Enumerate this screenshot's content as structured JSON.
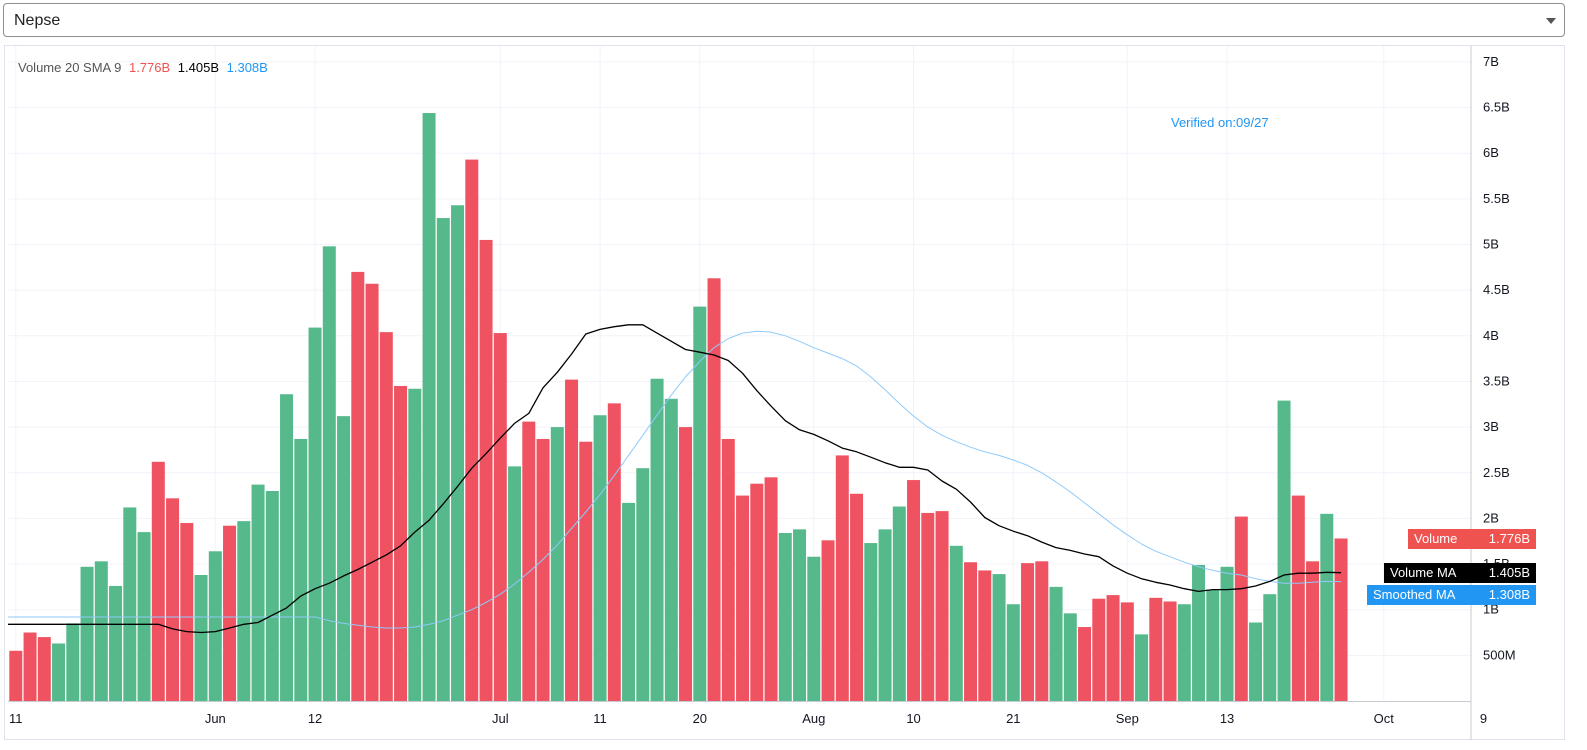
{
  "selector": {
    "value": "Nepse"
  },
  "legend": {
    "label": "Volume 20 SMA 9",
    "volume": "1.776B",
    "ma": "1.405B",
    "smoothed": "1.308B"
  },
  "annotation": "Verified on:09/27",
  "badges": {
    "volume": {
      "label": "Volume",
      "value": "1.776B"
    },
    "ma": {
      "label": "Volume MA",
      "value": "1.405B"
    },
    "smoothed": {
      "label": "Smoothed MA",
      "value": "1.308B"
    }
  },
  "colors": {
    "up": "#55b98b",
    "down": "#ef5362",
    "ma": "#000000",
    "smoothed": "#90caf9",
    "accent": "#2196f3"
  },
  "chart_data": {
    "type": "bar",
    "unit": "shares volume",
    "y_ticks": [
      "500M",
      "1B",
      "1.5B",
      "2B",
      "2.5B",
      "3B",
      "3.5B",
      "4B",
      "4.5B",
      "5B",
      "5.5B",
      "6B",
      "6.5B",
      "7B"
    ],
    "x_ticks": [
      {
        "label": "11",
        "i": 0
      },
      {
        "label": "Jun",
        "i": 14
      },
      {
        "label": "12",
        "i": 21
      },
      {
        "label": "Jul",
        "i": 34
      },
      {
        "label": "11",
        "i": 41
      },
      {
        "label": "20",
        "i": 48
      },
      {
        "label": "Aug",
        "i": 56
      },
      {
        "label": "10",
        "i": 63
      },
      {
        "label": "21",
        "i": 70
      },
      {
        "label": "Sep",
        "i": 78
      },
      {
        "label": "13",
        "i": 85
      },
      {
        "label": "Oct",
        "i": 96
      },
      {
        "label": "9",
        "i": 103
      }
    ],
    "ylim": [
      0,
      7.2
    ],
    "series": [
      {
        "name": "Volume",
        "type": "bar",
        "values": [
          0.55,
          0.75,
          0.7,
          0.63,
          0.85,
          1.47,
          1.53,
          1.26,
          2.12,
          1.85,
          2.62,
          2.22,
          1.95,
          1.38,
          1.64,
          1.92,
          1.97,
          2.37,
          2.3,
          3.36,
          2.87,
          4.09,
          4.98,
          3.12,
          4.7,
          4.57,
          4.04,
          3.45,
          3.42,
          6.44,
          5.29,
          5.43,
          5.93,
          5.05,
          4.03,
          2.57,
          3.06,
          2.87,
          3.0,
          3.52,
          2.84,
          3.13,
          3.26,
          2.17,
          2.55,
          3.53,
          3.31,
          3.0,
          4.32,
          4.63,
          2.87,
          2.25,
          2.38,
          2.45,
          1.84,
          1.88,
          1.58,
          1.76,
          2.69,
          2.27,
          1.73,
          1.88,
          2.13,
          2.42,
          2.06,
          2.08,
          1.7,
          1.52,
          1.43,
          1.39,
          1.06,
          1.51,
          1.53,
          1.25,
          0.96,
          0.81,
          1.12,
          1.16,
          1.08,
          0.73,
          1.13,
          1.09,
          1.06,
          1.49,
          1.22,
          1.47,
          2.02,
          0.86,
          1.17,
          3.29,
          2.25,
          1.53,
          2.05,
          1.78
        ],
        "directions": "DDDUUUUUUUDDDUUDUUUUUUUUDDDDUUUUDDDUDDUDDUDUUUUDUDDDDDUUUDDDUUUDDDUDDUUDDUUDDDDUDDUUUUDUUUDDUD"
      },
      {
        "name": "Volume MA",
        "type": "line",
        "values": [
          0.84,
          0.79,
          0.76,
          0.75,
          0.76,
          0.8,
          0.84,
          0.86,
          0.94,
          1.02,
          1.15,
          1.23,
          1.29,
          1.37,
          1.44,
          1.52,
          1.6,
          1.7,
          1.85,
          1.98,
          2.16,
          2.35,
          2.55,
          2.71,
          2.88,
          3.04,
          3.15,
          3.43,
          3.6,
          3.8,
          4.02,
          4.07,
          4.1,
          4.12,
          4.12,
          4.03,
          3.94,
          3.85,
          3.82,
          3.79,
          3.73,
          3.59,
          3.4,
          3.23,
          3.07,
          2.97,
          2.92,
          2.85,
          2.77,
          2.73,
          2.67,
          2.61,
          2.56,
          2.56,
          2.53,
          2.41,
          2.32,
          2.18,
          2.01,
          1.92,
          1.86,
          1.81,
          1.74,
          1.68,
          1.65,
          1.61,
          1.58,
          1.48,
          1.4,
          1.34,
          1.3,
          1.27,
          1.23,
          1.2,
          1.22,
          1.22,
          1.23,
          1.26,
          1.31,
          1.38,
          1.4,
          1.4,
          1.41,
          1.405
        ]
      },
      {
        "name": "Smoothed MA",
        "type": "line",
        "values": [
          0.92,
          0.88,
          0.85,
          0.83,
          0.81,
          0.8,
          0.8,
          0.81,
          0.84,
          0.88,
          0.94,
          1.0,
          1.08,
          1.17,
          1.28,
          1.41,
          1.55,
          1.71,
          1.89,
          2.07,
          2.26,
          2.47,
          2.69,
          2.91,
          3.13,
          3.35,
          3.55,
          3.72,
          3.87,
          3.97,
          4.03,
          4.05,
          4.04,
          4.0,
          3.94,
          3.87,
          3.81,
          3.75,
          3.67,
          3.55,
          3.41,
          3.26,
          3.12,
          3.0,
          2.91,
          2.84,
          2.78,
          2.73,
          2.69,
          2.64,
          2.58,
          2.5,
          2.4,
          2.29,
          2.17,
          2.05,
          1.93,
          1.82,
          1.72,
          1.64,
          1.58,
          1.52,
          1.47,
          1.43,
          1.4,
          1.38,
          1.34,
          1.31,
          1.29,
          1.29,
          1.3,
          1.31,
          1.308
        ]
      }
    ]
  }
}
